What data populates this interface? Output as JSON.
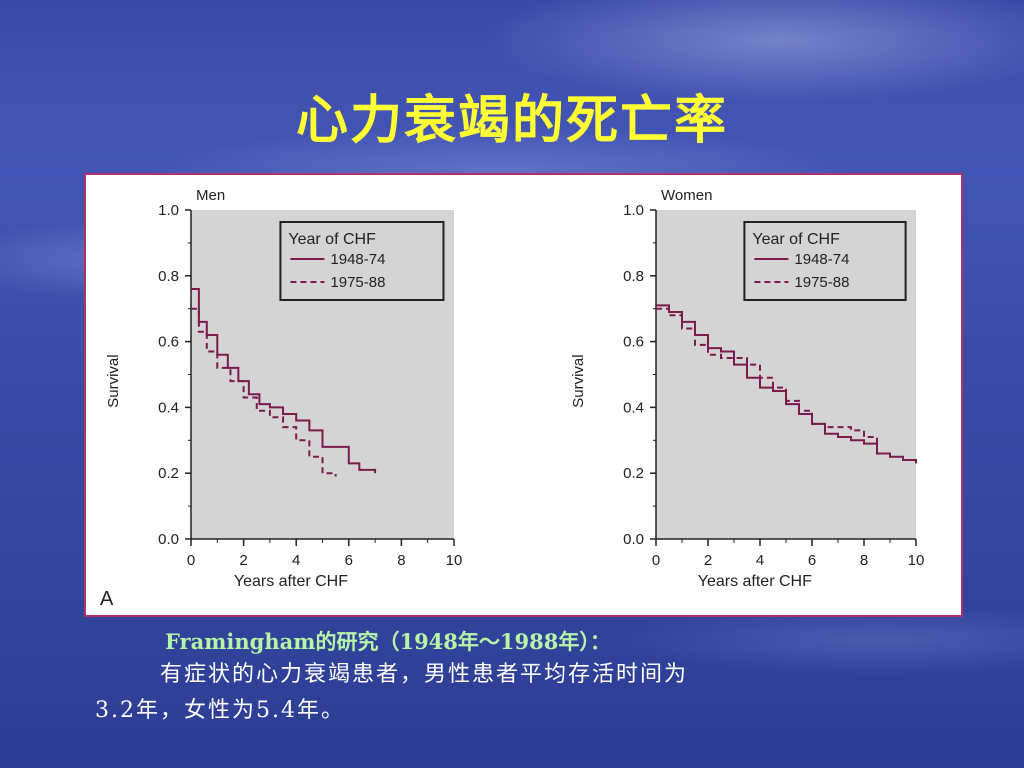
{
  "slide": {
    "title": "心力衰竭的死亡率",
    "caption_line1": "Framingham的研究（1948年～1988年）：",
    "caption_line2": "有症状的心力衰竭患者，男性患者平均存活时间为",
    "caption_line3": "3.2年，女性为5.4年。",
    "panel_label": "A"
  },
  "colors": {
    "title": "#ffff33",
    "plot_bg": "#d4d4d4",
    "line": "#7a1a4e",
    "border": "#b0306a"
  },
  "chart_data": [
    {
      "type": "line",
      "title": "Men",
      "xlabel": "Years after CHF",
      "ylabel": "Survival",
      "xlim": [
        0,
        10
      ],
      "ylim": [
        0,
        1.0
      ],
      "x_ticks": [
        "0",
        "2",
        "4",
        "6",
        "8",
        "10"
      ],
      "y_ticks": [
        "0.0",
        "0.2",
        "0.4",
        "0.6",
        "0.8",
        "1.0"
      ],
      "legend": {
        "title": "Year of CHF",
        "position": "top-right"
      },
      "series": [
        {
          "name": "1948-74",
          "style": "solid",
          "x": [
            0,
            0.3,
            0.6,
            1,
            1.4,
            1.8,
            2.2,
            2.6,
            3,
            3.5,
            4,
            4.5,
            5,
            5.5,
            6,
            6.4,
            7
          ],
          "y": [
            0.76,
            0.66,
            0.62,
            0.56,
            0.52,
            0.48,
            0.44,
            0.41,
            0.4,
            0.38,
            0.36,
            0.33,
            0.28,
            0.28,
            0.23,
            0.21,
            0.2
          ]
        },
        {
          "name": "1975-88",
          "style": "dashed",
          "x": [
            0,
            0.3,
            0.6,
            1,
            1.5,
            2,
            2.5,
            3,
            3.5,
            4,
            4.5,
            5,
            5.5
          ],
          "y": [
            0.7,
            0.63,
            0.57,
            0.52,
            0.48,
            0.43,
            0.39,
            0.37,
            0.34,
            0.3,
            0.25,
            0.2,
            0.19
          ]
        }
      ]
    },
    {
      "type": "line",
      "title": "Women",
      "xlabel": "Years after CHF",
      "ylabel": "Survival",
      "xlim": [
        0,
        10
      ],
      "ylim": [
        0,
        1.0
      ],
      "x_ticks": [
        "0",
        "2",
        "4",
        "6",
        "8",
        "10"
      ],
      "y_ticks": [
        "0.0",
        "0.2",
        "0.4",
        "0.6",
        "0.8",
        "1.0"
      ],
      "legend": {
        "title": "Year of CHF",
        "position": "top-right"
      },
      "series": [
        {
          "name": "1948-74",
          "style": "solid",
          "x": [
            0,
            0.5,
            1,
            1.5,
            2,
            2.5,
            3,
            3.5,
            4,
            4.5,
            5,
            5.5,
            6,
            6.5,
            7,
            7.5,
            8,
            8.5,
            9,
            9.5,
            10
          ],
          "y": [
            0.71,
            0.69,
            0.66,
            0.62,
            0.58,
            0.57,
            0.53,
            0.49,
            0.46,
            0.45,
            0.41,
            0.38,
            0.35,
            0.32,
            0.31,
            0.3,
            0.29,
            0.26,
            0.25,
            0.24,
            0.23
          ]
        },
        {
          "name": "1975-88",
          "style": "dashed",
          "x": [
            0,
            0.5,
            1,
            1.5,
            2,
            2.5,
            3,
            3.5,
            4,
            4.5,
            5,
            5.5,
            6,
            6.5,
            7,
            7.5,
            8,
            8.5
          ],
          "y": [
            0.7,
            0.68,
            0.64,
            0.59,
            0.56,
            0.55,
            0.55,
            0.53,
            0.49,
            0.46,
            0.42,
            0.39,
            0.35,
            0.34,
            0.34,
            0.33,
            0.31,
            0.28
          ]
        }
      ]
    }
  ]
}
